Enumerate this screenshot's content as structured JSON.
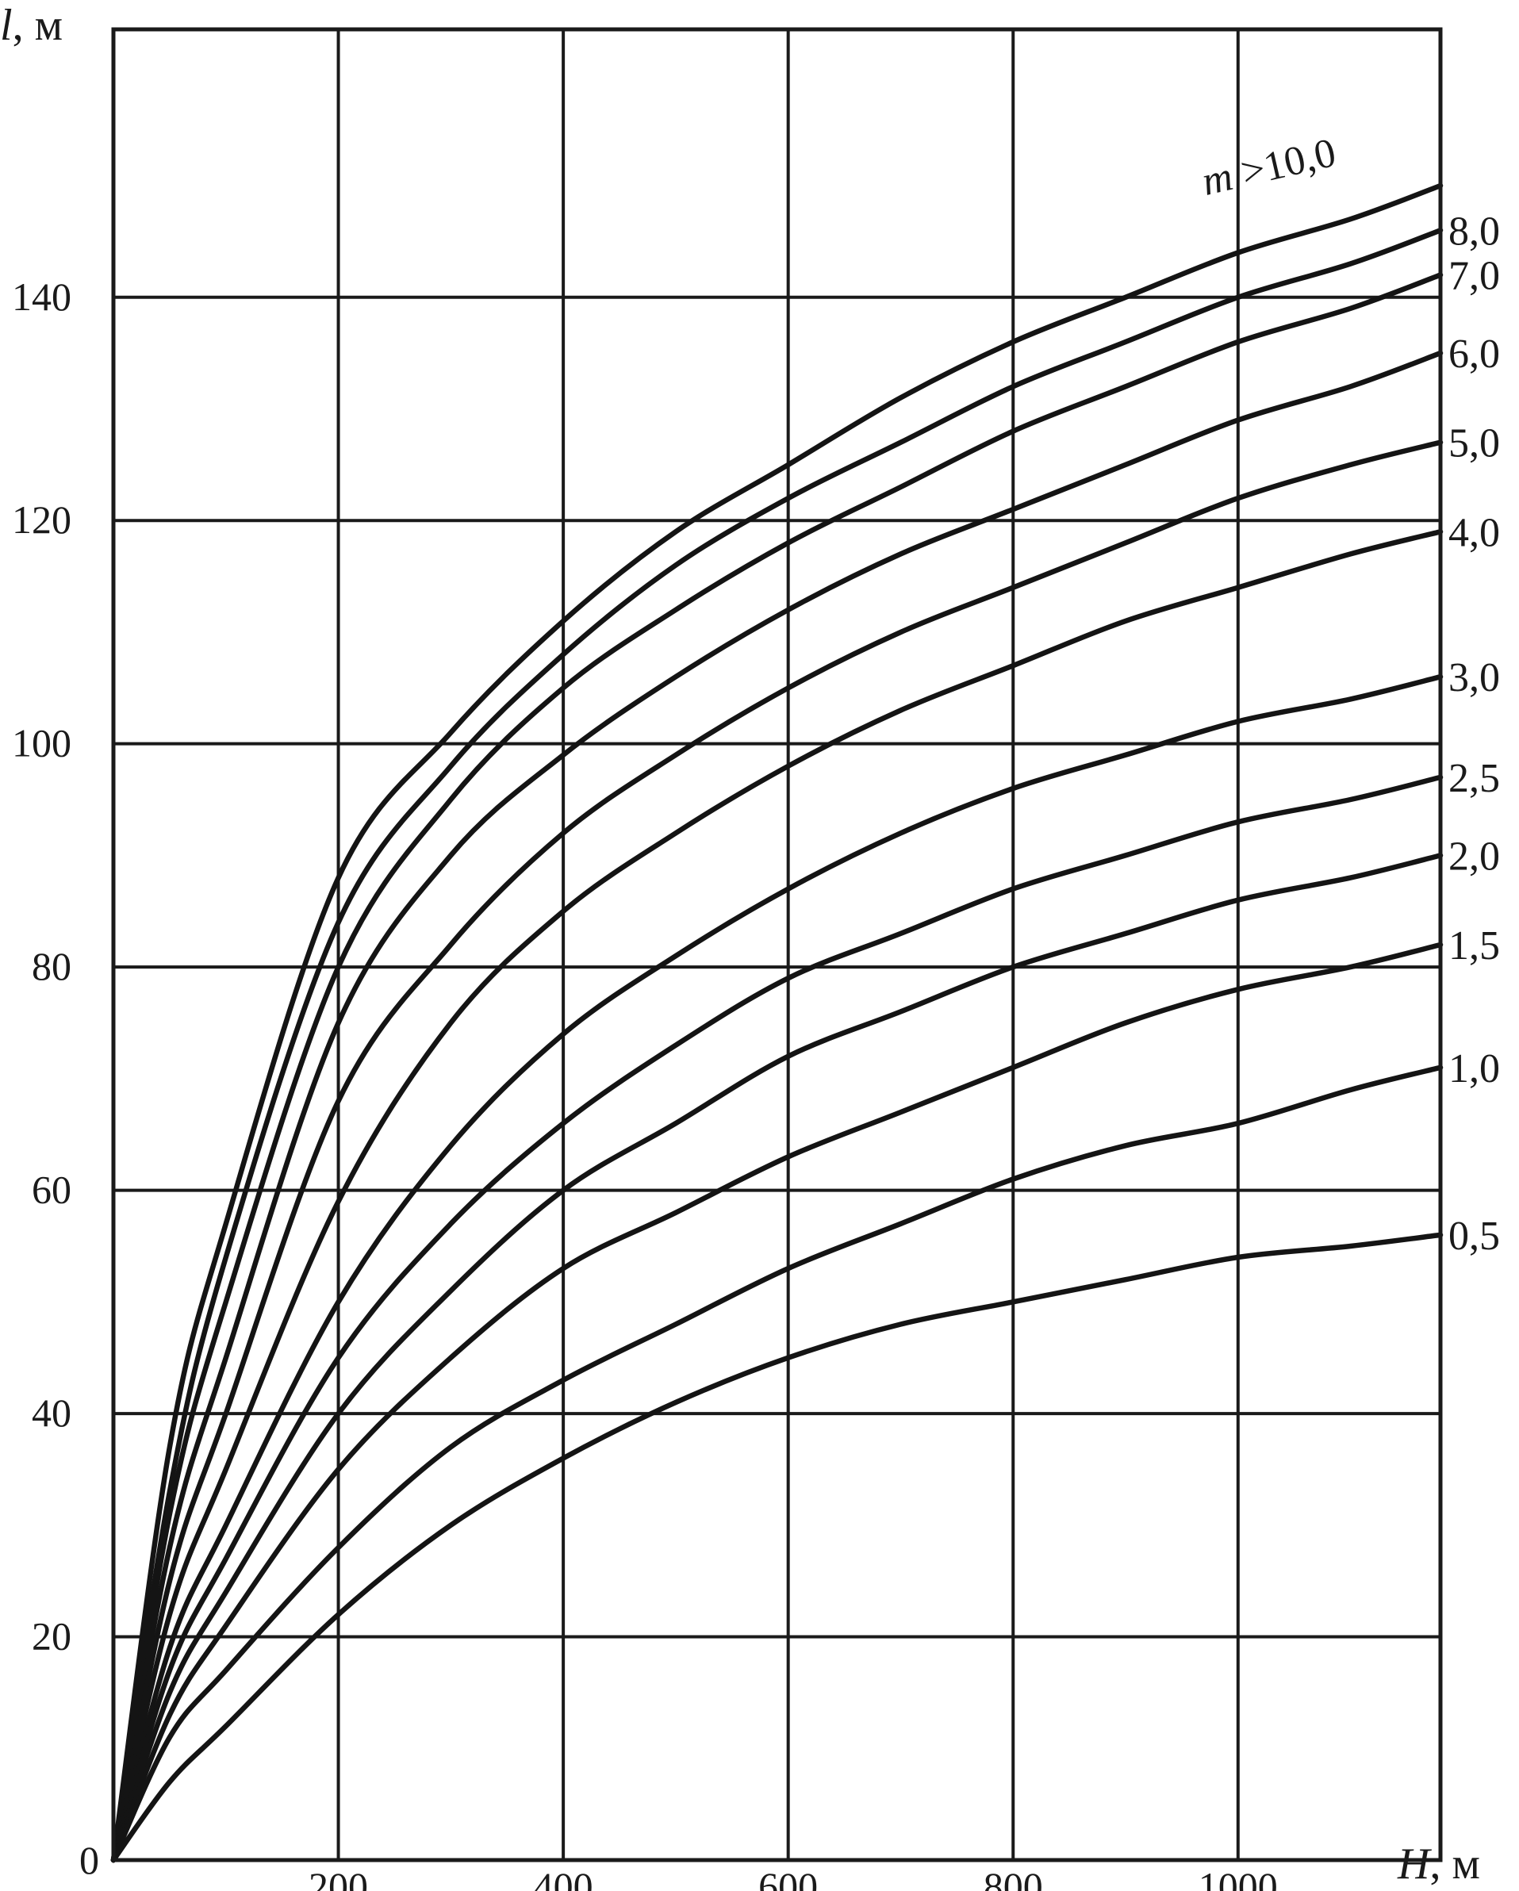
{
  "chart_data": {
    "type": "line",
    "title": "",
    "xlabel": "H, м",
    "ylabel": "l, м",
    "origin_label": "0",
    "xlim": [
      0,
      1180
    ],
    "ylim": [
      0,
      164
    ],
    "grid": true,
    "x_ticks": [
      200,
      400,
      600,
      800,
      1000
    ],
    "x_tick_labels": [
      "200",
      "400",
      "600",
      "800",
      "1000"
    ],
    "y_ticks": [
      20,
      40,
      60,
      80,
      100,
      120,
      140
    ],
    "y_tick_labels": [
      "20",
      "40",
      "60",
      "80",
      "100",
      "120",
      "140"
    ],
    "series": [
      {
        "name": "m >10,0",
        "label": "m >10,0",
        "x": [
          0,
          50,
          100,
          200,
          300,
          400,
          500,
          600,
          700,
          800,
          900,
          1000,
          1100,
          1180
        ],
        "y": [
          0,
          37,
          57,
          88,
          101,
          111,
          119,
          125,
          131,
          136,
          140,
          144,
          147,
          150
        ]
      },
      {
        "name": "8,0",
        "label": "8,0",
        "x": [
          0,
          50,
          100,
          200,
          300,
          400,
          500,
          600,
          700,
          800,
          900,
          1000,
          1100,
          1180
        ],
        "y": [
          0,
          33,
          54,
          84,
          98,
          108,
          116,
          122,
          127,
          132,
          136,
          140,
          143,
          146
        ]
      },
      {
        "name": "7,0",
        "label": "7,0",
        "x": [
          0,
          50,
          100,
          200,
          300,
          400,
          500,
          600,
          700,
          800,
          900,
          1000,
          1100,
          1180
        ],
        "y": [
          0,
          31,
          50,
          80,
          95,
          105,
          112,
          118,
          123,
          128,
          132,
          136,
          139,
          142
        ]
      },
      {
        "name": "6,0",
        "label": "6,0",
        "x": [
          0,
          50,
          100,
          200,
          300,
          400,
          500,
          600,
          700,
          800,
          900,
          1000,
          1100,
          1180
        ],
        "y": [
          0,
          28,
          45,
          75,
          90,
          99,
          106,
          112,
          117,
          121,
          125,
          129,
          132,
          135
        ]
      },
      {
        "name": "5,0",
        "label": "5,0",
        "x": [
          0,
          50,
          100,
          200,
          300,
          400,
          500,
          600,
          700,
          800,
          900,
          1000,
          1100,
          1180
        ],
        "y": [
          0,
          25,
          40,
          68,
          82,
          92,
          99,
          105,
          110,
          114,
          118,
          122,
          125,
          127
        ]
      },
      {
        "name": "4,0",
        "label": "4,0",
        "x": [
          0,
          50,
          100,
          200,
          300,
          400,
          500,
          600,
          700,
          800,
          900,
          1000,
          1100,
          1180
        ],
        "y": [
          0,
          22,
          35,
          59,
          75,
          85,
          92,
          98,
          103,
          107,
          111,
          114,
          117,
          119
        ]
      },
      {
        "name": "3,0",
        "label": "3,0",
        "x": [
          0,
          50,
          100,
          200,
          300,
          400,
          500,
          600,
          700,
          800,
          900,
          1000,
          1100,
          1180
        ],
        "y": [
          0,
          19,
          30,
          50,
          64,
          74,
          81,
          87,
          92,
          96,
          99,
          102,
          104,
          106
        ]
      },
      {
        "name": "2,5",
        "label": "2,5",
        "x": [
          0,
          50,
          100,
          200,
          300,
          400,
          500,
          600,
          700,
          800,
          900,
          1000,
          1100,
          1180
        ],
        "y": [
          0,
          17,
          27,
          45,
          57,
          66,
          73,
          79,
          83,
          87,
          90,
          93,
          95,
          97
        ]
      },
      {
        "name": "2,0",
        "label": "2,0",
        "x": [
          0,
          50,
          100,
          200,
          300,
          400,
          500,
          600,
          700,
          800,
          900,
          1000,
          1100,
          1180
        ],
        "y": [
          0,
          15,
          24,
          40,
          51,
          60,
          66,
          72,
          76,
          80,
          83,
          86,
          88,
          90
        ]
      },
      {
        "name": "1,5",
        "label": "1,5",
        "x": [
          0,
          50,
          100,
          200,
          300,
          400,
          500,
          600,
          700,
          800,
          900,
          1000,
          1100,
          1180
        ],
        "y": [
          0,
          13,
          21,
          35,
          45,
          53,
          58,
          63,
          67,
          71,
          75,
          78,
          80,
          82
        ]
      },
      {
        "name": "1,0",
        "label": "1,0",
        "x": [
          0,
          50,
          100,
          200,
          300,
          400,
          500,
          600,
          700,
          800,
          900,
          1000,
          1100,
          1180
        ],
        "y": [
          0,
          11,
          17,
          28,
          37,
          43,
          48,
          53,
          57,
          61,
          64,
          66,
          69,
          71
        ]
      },
      {
        "name": "0,5",
        "label": "0,5",
        "x": [
          0,
          50,
          100,
          200,
          300,
          400,
          500,
          600,
          700,
          800,
          900,
          1000,
          1100,
          1180
        ],
        "y": [
          0,
          7,
          12,
          22,
          30,
          36,
          41,
          45,
          48,
          50,
          52,
          54,
          55,
          56
        ]
      }
    ]
  }
}
